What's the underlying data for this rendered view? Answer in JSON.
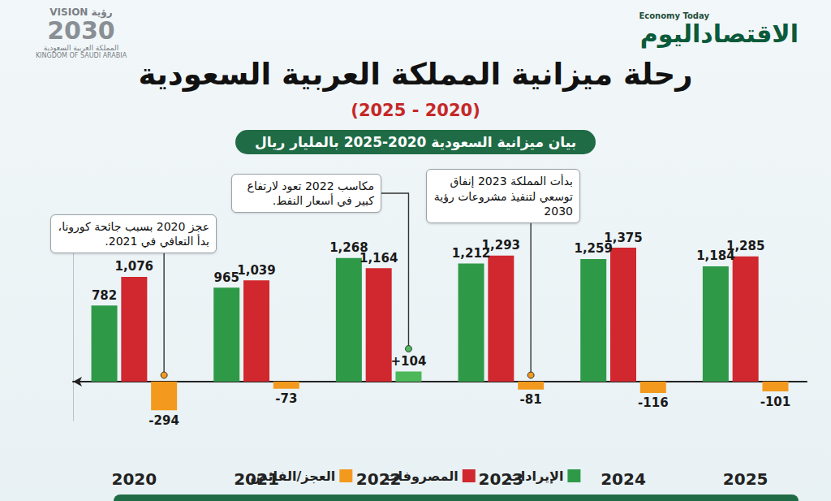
{
  "chart_data": {
    "type": "bar",
    "title": "رحلة ميزانية المملكة العربية السعودية",
    "subtitle": "(2020 - 2025)",
    "banner": "بيان ميزانية السعودية 2020-2025 بالمليار ريال",
    "categories": [
      "2020",
      "2021",
      "2022",
      "2023",
      "2024",
      "2025"
    ],
    "series": [
      {
        "name": "الإيرادات",
        "color": "#2e9a48",
        "values": [
          782,
          965,
          1268,
          1212,
          1259,
          1184
        ],
        "value_labels": [
          "782",
          "965",
          "1,268",
          "1,212",
          "1,259",
          "1,184"
        ]
      },
      {
        "name": "المصروفات",
        "color": "#d0282e",
        "values": [
          1076,
          1039,
          1164,
          1293,
          1375,
          1285
        ],
        "value_labels": [
          "1,076",
          "1,039",
          "1,164",
          "1,293",
          "1,375",
          "1,285"
        ]
      },
      {
        "name": "العجز/الفائض",
        "color": "#f39a1e",
        "colors": [
          "#f39a1e",
          "#f39a1e",
          "#4cb85a",
          "#f39a1e",
          "#f39a1e",
          "#f39a1e"
        ],
        "values": [
          -294,
          -73,
          104,
          -81,
          -116,
          -101
        ],
        "value_labels": [
          "-294",
          "-73",
          "+104",
          "-81",
          "-116",
          "-101"
        ]
      }
    ],
    "ylim": [
      -400,
      1500
    ],
    "grid": false,
    "legend": "bottom",
    "data_labels": true,
    "tick_labels": "x",
    "annotations": [
      {
        "text": "عجز 2020 بسبب جائحة كورونا، بدأ التعافي في 2021.",
        "category": "2020"
      },
      {
        "text": "مكاسب 2022 تعود لارتفاع كبير في أسعار النفط.",
        "category": "2022"
      },
      {
        "text": "بدأت المملكة 2023 إنفاق توسعي لتنفيذ مشروعات رؤية 2030",
        "category": "2023"
      }
    ],
    "branding": {
      "publisher_en": "Economy Today",
      "publisher_ar": "الاقتصاداليوم",
      "vision_en": "VISION",
      "vision_ar": "رؤية",
      "vision_year": "2030",
      "kingdom_ar": "المملكة العربية السعودية",
      "kingdom_en": "KINGDOM OF SAUDI ARABIA"
    }
  }
}
